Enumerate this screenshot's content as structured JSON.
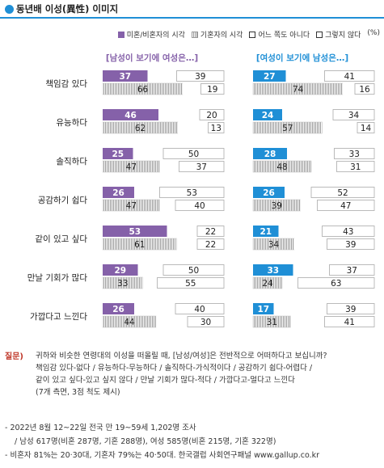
{
  "title": "동년배 이성(異性) 이미지",
  "legend": {
    "solid": "미혼/비혼자의 시각",
    "hatched": "기혼자의 시각",
    "neutral": "어느 쪽도 아니다",
    "neg": "그렇지 않다",
    "unit": "(%)"
  },
  "headers": {
    "left": "[남성이 보기에 여성은…]",
    "right": "[여성이 보기에 남성은…]"
  },
  "colors": {
    "purple": "#8561a9",
    "blue": "#1f8fd6",
    "hatch": "#9a9a9a"
  },
  "chart_data": {
    "type": "bar",
    "stacked": true,
    "categories": [
      "책임감 있다",
      "유능하다",
      "솔직하다",
      "공감하기 쉽다",
      "같이 있고 싶다",
      "만날 기회가 많다",
      "가깝다고 느낀다"
    ],
    "panels": [
      {
        "header": "[남성이 보기에 여성은…]",
        "series": [
          {
            "name": "미혼/비혼자의 시각",
            "positive": [
              37,
              46,
              25,
              26,
              53,
              29,
              26
            ],
            "negative": [
              39,
              20,
              50,
              53,
              22,
              50,
              40
            ]
          },
          {
            "name": "기혼자의 시각",
            "positive": [
              66,
              62,
              47,
              47,
              61,
              33,
              44
            ],
            "negative": [
              19,
              13,
              37,
              40,
              22,
              55,
              30
            ]
          }
        ]
      },
      {
        "header": "[여성이 보기에 남성은…]",
        "series": [
          {
            "name": "미혼/비혼자의 시각",
            "positive": [
              27,
              24,
              28,
              26,
              21,
              33,
              17
            ],
            "negative": [
              41,
              34,
              33,
              52,
              43,
              37,
              39
            ]
          },
          {
            "name": "기혼자의 시각",
            "positive": [
              74,
              57,
              48,
              39,
              34,
              24,
              31
            ],
            "negative": [
              16,
              14,
              31,
              47,
              39,
              63,
              41
            ]
          }
        ]
      }
    ],
    "segments": [
      "positive",
      "어느 쪽도 아니다",
      "그렇지 않다"
    ],
    "xlim": [
      0,
      100
    ],
    "unit": "%"
  },
  "question": {
    "label": "질문)",
    "lines": [
      "귀하와 비슷한 연령대의 이성을 떠올릴 때, [남성/여성]은 전반적으로 어떠하다고 보십니까?",
      "책임감 있다-없다 / 유능하다-무능하다 / 솔직하다-가식적이다 / 공감하기 쉽다-어렵다 /",
      "같이 있고 싶다-있고 싶지 않다 / 만날 기회가 많다-적다 / 가깝다고-멀다고 느낀다",
      "(7개 측면, 3점 척도 제시)"
    ]
  },
  "notes": [
    "- 2022년 8월 12~22일 전국 만 19~59세 1,202명 조사",
    "  / 남성 617명(비혼 287명, 기혼 288명), 여성 585명(비혼 215명, 기혼 322명)",
    "- 비혼자 81%는 20·30대, 기혼자 79%는 40·50대. 한국갤럽 사회연구패널 www.gallup.co.kr"
  ]
}
